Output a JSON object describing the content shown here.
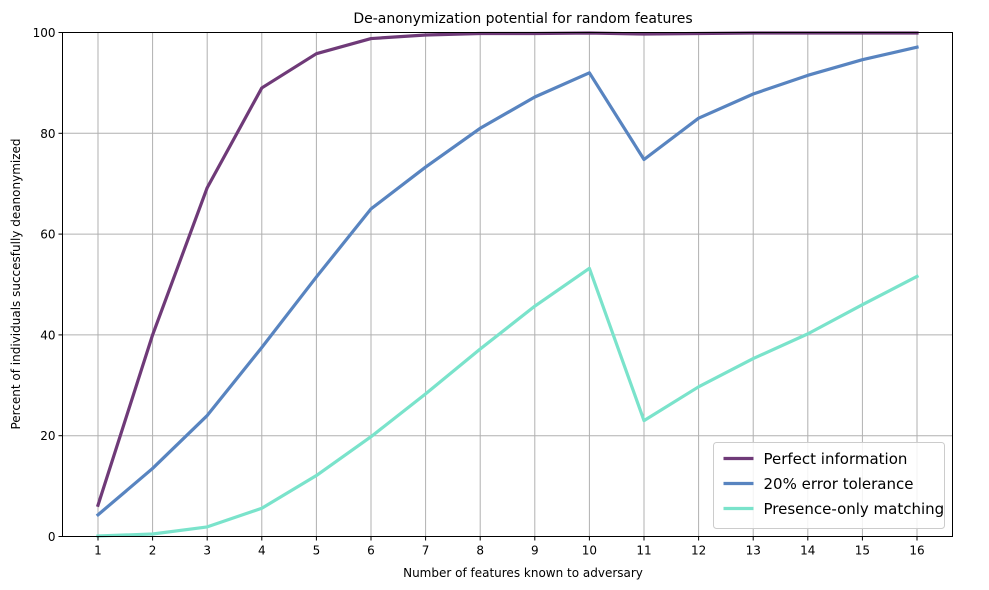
{
  "chart_data": {
    "type": "line",
    "title": "De-anonymization potential for random features",
    "xlabel": "Number of features known to adversary",
    "ylabel": "Percent of individuals succesfully deanonymized",
    "x": [
      1,
      2,
      3,
      4,
      5,
      6,
      7,
      8,
      9,
      10,
      11,
      12,
      13,
      14,
      15,
      16
    ],
    "xticks": [
      "1",
      "2",
      "3",
      "4",
      "5",
      "6",
      "7",
      "8",
      "9",
      "10",
      "11",
      "12",
      "13",
      "14",
      "15",
      "16"
    ],
    "yticks": [
      "0",
      "20",
      "40",
      "60",
      "80",
      "100"
    ],
    "xlim": [
      0.35,
      16.65
    ],
    "ylim": [
      0,
      100
    ],
    "grid": true,
    "legend_position": "bottom-right",
    "series": [
      {
        "name": "Perfect information",
        "color": "#6f3a78",
        "values": [
          6.2,
          40.0,
          69.2,
          89.0,
          95.8,
          98.8,
          99.5,
          99.8,
          99.8,
          99.9,
          99.7,
          99.8,
          99.9,
          99.9,
          99.9,
          99.9
        ]
      },
      {
        "name": "20% error tolerance",
        "color": "#5884c0",
        "values": [
          4.3,
          13.5,
          24.0,
          37.5,
          51.5,
          65.0,
          73.3,
          81.0,
          87.2,
          92.0,
          74.8,
          83.0,
          87.8,
          91.5,
          94.6,
          97.1
        ]
      },
      {
        "name": "Presence-only matching",
        "color": "#7ae3cb",
        "values": [
          0.1,
          0.5,
          1.9,
          5.6,
          12.1,
          19.8,
          28.3,
          37.2,
          45.7,
          53.2,
          23.0,
          29.7,
          35.3,
          40.2,
          46.0,
          51.6
        ]
      }
    ]
  }
}
